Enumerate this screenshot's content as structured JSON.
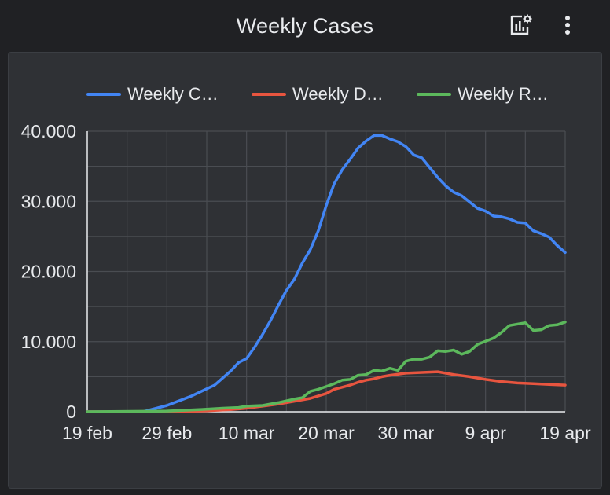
{
  "header": {
    "title": "Weekly Cases",
    "chart_settings_icon": "chart-settings-icon",
    "more_icon": "more-vert-icon"
  },
  "colors": {
    "background": "#202124",
    "card": "#2f3135",
    "grid": "#4a4d52",
    "text": "#e8eaed"
  },
  "chart_data": {
    "type": "line",
    "title": "",
    "xlabel": "",
    "ylabel": "",
    "x_tick_labels": [
      "19 feb",
      "29 feb",
      "10 mar",
      "20 mar",
      "30 mar",
      "9 apr",
      "19 apr"
    ],
    "y_tick_labels": [
      "0",
      "10.000",
      "20.000",
      "30.000",
      "40.000"
    ],
    "ylim": [
      0,
      40000
    ],
    "x_range": [
      "2020-02-19",
      "2020-04-19"
    ],
    "grid": true,
    "legend_position": "top",
    "series": [
      {
        "name": "Weekly Ca…",
        "color": "#4285f4",
        "points": [
          [
            "2020-02-19",
            0
          ],
          [
            "2020-02-26",
            0
          ],
          [
            "2020-02-29",
            900
          ],
          [
            "2020-03-03",
            2200
          ],
          [
            "2020-03-06",
            3800
          ],
          [
            "2020-03-08",
            5800
          ],
          [
            "2020-03-09",
            7000
          ],
          [
            "2020-03-10",
            7600
          ],
          [
            "2020-03-11",
            9200
          ],
          [
            "2020-03-12",
            11000
          ],
          [
            "2020-03-13",
            13000
          ],
          [
            "2020-03-14",
            15200
          ],
          [
            "2020-03-15",
            17300
          ],
          [
            "2020-03-16",
            18900
          ],
          [
            "2020-03-17",
            21200
          ],
          [
            "2020-03-18",
            23100
          ],
          [
            "2020-03-19",
            25800
          ],
          [
            "2020-03-20",
            29400
          ],
          [
            "2020-03-21",
            32500
          ],
          [
            "2020-03-22",
            34500
          ],
          [
            "2020-03-23",
            36000
          ],
          [
            "2020-03-24",
            37600
          ],
          [
            "2020-03-25",
            38600
          ],
          [
            "2020-03-26",
            39400
          ],
          [
            "2020-03-27",
            39400
          ],
          [
            "2020-03-28",
            38900
          ],
          [
            "2020-03-29",
            38500
          ],
          [
            "2020-03-30",
            37800
          ],
          [
            "2020-03-31",
            36600
          ],
          [
            "2020-04-01",
            36200
          ],
          [
            "2020-04-02",
            34800
          ],
          [
            "2020-04-03",
            33400
          ],
          [
            "2020-04-04",
            32200
          ],
          [
            "2020-04-05",
            31300
          ],
          [
            "2020-04-06",
            30800
          ],
          [
            "2020-04-07",
            29900
          ],
          [
            "2020-04-08",
            29000
          ],
          [
            "2020-04-09",
            28600
          ],
          [
            "2020-04-10",
            27900
          ],
          [
            "2020-04-11",
            27800
          ],
          [
            "2020-04-12",
            27500
          ],
          [
            "2020-04-13",
            27000
          ],
          [
            "2020-04-14",
            26900
          ],
          [
            "2020-04-15",
            25800
          ],
          [
            "2020-04-16",
            25400
          ],
          [
            "2020-04-17",
            24900
          ],
          [
            "2020-04-18",
            23700
          ],
          [
            "2020-04-19",
            22700
          ]
        ]
      },
      {
        "name": "Weekly De…",
        "color": "#e8553f",
        "points": [
          [
            "2020-02-19",
            0
          ],
          [
            "2020-03-01",
            0
          ],
          [
            "2020-03-05",
            150
          ],
          [
            "2020-03-08",
            300
          ],
          [
            "2020-03-10",
            500
          ],
          [
            "2020-03-12",
            800
          ],
          [
            "2020-03-14",
            1100
          ],
          [
            "2020-03-16",
            1500
          ],
          [
            "2020-03-18",
            1900
          ],
          [
            "2020-03-20",
            2600
          ],
          [
            "2020-03-21",
            3200
          ],
          [
            "2020-03-22",
            3500
          ],
          [
            "2020-03-23",
            3800
          ],
          [
            "2020-03-24",
            4200
          ],
          [
            "2020-03-25",
            4500
          ],
          [
            "2020-03-26",
            4700
          ],
          [
            "2020-03-27",
            5000
          ],
          [
            "2020-03-28",
            5200
          ],
          [
            "2020-03-30",
            5500
          ],
          [
            "2020-04-01",
            5600
          ],
          [
            "2020-04-03",
            5700
          ],
          [
            "2020-04-05",
            5300
          ],
          [
            "2020-04-07",
            5000
          ],
          [
            "2020-04-09",
            4600
          ],
          [
            "2020-04-11",
            4300
          ],
          [
            "2020-04-13",
            4100
          ],
          [
            "2020-04-15",
            4000
          ],
          [
            "2020-04-17",
            3900
          ],
          [
            "2020-04-19",
            3800
          ]
        ]
      },
      {
        "name": "Weekly Re…",
        "color": "#5cb85c",
        "points": [
          [
            "2020-02-19",
            0
          ],
          [
            "2020-02-29",
            100
          ],
          [
            "2020-03-04",
            300
          ],
          [
            "2020-03-07",
            500
          ],
          [
            "2020-03-09",
            600
          ],
          [
            "2020-03-10",
            800
          ],
          [
            "2020-03-12",
            900
          ],
          [
            "2020-03-14",
            1300
          ],
          [
            "2020-03-16",
            1800
          ],
          [
            "2020-03-17",
            2000
          ],
          [
            "2020-03-18",
            2900
          ],
          [
            "2020-03-19",
            3200
          ],
          [
            "2020-03-20",
            3600
          ],
          [
            "2020-03-21",
            4000
          ],
          [
            "2020-03-22",
            4500
          ],
          [
            "2020-03-23",
            4600
          ],
          [
            "2020-03-24",
            5200
          ],
          [
            "2020-03-25",
            5300
          ],
          [
            "2020-03-26",
            5900
          ],
          [
            "2020-03-27",
            5800
          ],
          [
            "2020-03-28",
            6200
          ],
          [
            "2020-03-29",
            5900
          ],
          [
            "2020-03-30",
            7200
          ],
          [
            "2020-03-31",
            7500
          ],
          [
            "2020-04-01",
            7500
          ],
          [
            "2020-04-02",
            7800
          ],
          [
            "2020-04-03",
            8700
          ],
          [
            "2020-04-04",
            8600
          ],
          [
            "2020-04-05",
            8800
          ],
          [
            "2020-04-06",
            8200
          ],
          [
            "2020-04-07",
            8600
          ],
          [
            "2020-04-08",
            9600
          ],
          [
            "2020-04-10",
            10500
          ],
          [
            "2020-04-11",
            11300
          ],
          [
            "2020-04-12",
            12300
          ],
          [
            "2020-04-14",
            12700
          ],
          [
            "2020-04-15",
            11600
          ],
          [
            "2020-04-16",
            11700
          ],
          [
            "2020-04-17",
            12300
          ],
          [
            "2020-04-18",
            12400
          ],
          [
            "2020-04-19",
            12800
          ]
        ]
      }
    ]
  }
}
